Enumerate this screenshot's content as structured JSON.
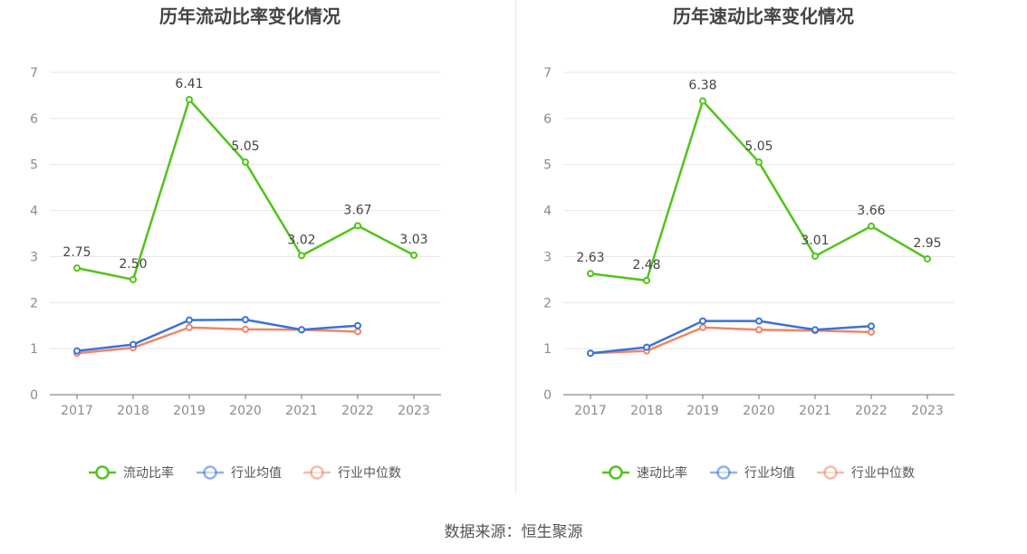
{
  "chart_data": [
    {
      "type": "line",
      "title": "历年流动比率变化情况",
      "categories": [
        "2017",
        "2018",
        "2019",
        "2020",
        "2021",
        "2022",
        "2023"
      ],
      "ylim": [
        0,
        7
      ],
      "yticks": [
        "0",
        "1",
        "2",
        "3",
        "4",
        "5",
        "6",
        "7"
      ],
      "grid": true,
      "legend_position": "bottom",
      "series": [
        {
          "name": "流动比率",
          "color": "#52c41a",
          "values": [
            2.75,
            2.5,
            6.41,
            5.05,
            3.02,
            3.67,
            3.03
          ],
          "labels": [
            "2.75",
            "2.50",
            "6.41",
            "5.05",
            "3.02",
            "3.67",
            "3.03"
          ]
        },
        {
          "name": "行业均值",
          "color": "#3a72d8",
          "values": [
            0.95,
            1.09,
            1.62,
            1.63,
            1.41,
            1.5,
            null
          ]
        },
        {
          "name": "行业中位数",
          "color": "#f08565",
          "values": [
            0.9,
            1.02,
            1.46,
            1.42,
            1.41,
            1.37,
            null
          ]
        }
      ]
    },
    {
      "type": "line",
      "title": "历年速动比率变化情况",
      "categories": [
        "2017",
        "2018",
        "2019",
        "2020",
        "2021",
        "2022",
        "2023"
      ],
      "ylim": [
        0,
        7
      ],
      "yticks": [
        "0",
        "1",
        "2",
        "3",
        "4",
        "5",
        "6",
        "7"
      ],
      "grid": true,
      "legend_position": "bottom",
      "series": [
        {
          "name": "速动比率",
          "color": "#52c41a",
          "values": [
            2.63,
            2.48,
            6.38,
            5.05,
            3.01,
            3.66,
            2.95
          ],
          "labels": [
            "2.63",
            "2.48",
            "6.38",
            "5.05",
            "3.01",
            "3.66",
            "2.95"
          ]
        },
        {
          "name": "行业均值",
          "color": "#3a72d8",
          "values": [
            0.9,
            1.03,
            1.6,
            1.6,
            1.41,
            1.49,
            null
          ]
        },
        {
          "name": "行业中位数",
          "color": "#f08565",
          "values": [
            0.9,
            0.95,
            1.46,
            1.41,
            1.39,
            1.36,
            null
          ]
        }
      ]
    }
  ],
  "footer": {
    "source": "数据来源：恒生聚源"
  }
}
